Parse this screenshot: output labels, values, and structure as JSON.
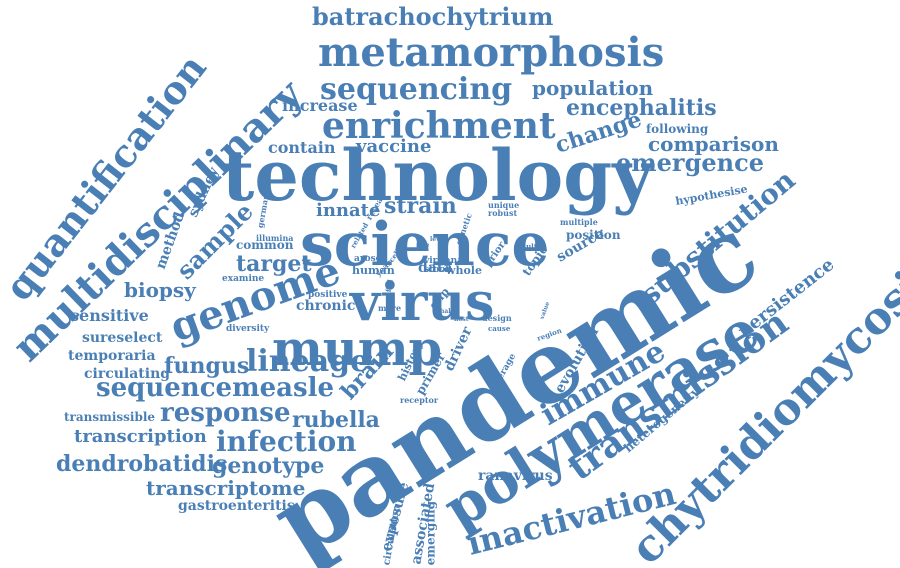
{
  "cloud": {
    "color": "#4a7fb5",
    "words": [
      "pandemic",
      "technology",
      "science",
      "polymerase",
      "virus",
      "metamorphosis",
      "multidisciplinary",
      "chytridiomycosis",
      "genome",
      "mump",
      "quantification",
      "enrichment",
      "transmission",
      "inactivation",
      "sequencing",
      "lineage",
      "sequencemeasle",
      "substitution",
      "immune",
      "infection",
      "batrachochytrium",
      "response",
      "emergence",
      "encephalitis",
      "population",
      "comparison",
      "change",
      "dendrobatidis",
      "rubella",
      "genotype",
      "transcriptome",
      "fungus",
      "sample",
      "brain",
      "transcription",
      "persistence",
      "biopsy",
      "strain",
      "vaccine",
      "innate",
      "target",
      "increase",
      "contain",
      "sensitive",
      "temporaria",
      "sureselect",
      "circulating",
      "transmissible",
      "gastroenteritis",
      "ranavirus",
      "heterogeneity",
      "exposure",
      "associated",
      "emerging",
      "circulation",
      "evolution",
      "driver",
      "primer",
      "history",
      "chronic",
      "common",
      "method",
      "sydney",
      "following",
      "hypothesise",
      "position",
      "source",
      "topic",
      "data",
      "human",
      "arose",
      "positive",
      "diversity",
      "examine",
      "illumina",
      "germany",
      "related",
      "reveal",
      "unique",
      "robust",
      "multiple",
      "genetic",
      "result",
      "prior",
      "viral",
      "rana",
      "stool",
      "whole",
      "year",
      "cell",
      "role",
      "level",
      "gilp",
      "more",
      "halt",
      "host",
      "design",
      "cause",
      "coverage",
      "value",
      "region",
      "receptor",
      "fall"
    ]
  }
}
